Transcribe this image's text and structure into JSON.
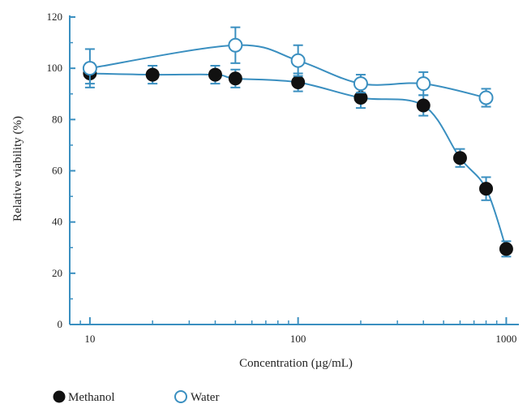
{
  "chart_data": {
    "type": "line",
    "title": "",
    "xlabel": "Concentration (µg/mL)",
    "ylabel": "Relative viability (%)",
    "xscale": "log",
    "xlim": [
      8,
      1150
    ],
    "ylim": [
      0,
      120
    ],
    "xticks": [
      10,
      100,
      1000
    ],
    "yticks": [
      0,
      20,
      40,
      60,
      80,
      100,
      120
    ],
    "grid": false,
    "legend_position": "bottom-left",
    "axis_color": "#3a8fc0",
    "series": [
      {
        "name": "Methanol",
        "marker": "filled-circle",
        "line_color": "#3a8fc0",
        "marker_color": "#111111",
        "points": [
          {
            "x": 10,
            "y": 98,
            "err": 4
          },
          {
            "x": 20,
            "y": 97.5,
            "err": 3.5
          },
          {
            "x": 40,
            "y": 97.5,
            "err": 3.5
          },
          {
            "x": 50,
            "y": 96,
            "err": 3.5
          },
          {
            "x": 100,
            "y": 94.5,
            "err": 3.5
          },
          {
            "x": 200,
            "y": 88.5,
            "err": 4
          },
          {
            "x": 400,
            "y": 85.5,
            "err": 4
          },
          {
            "x": 600,
            "y": 65,
            "err": 3.5
          },
          {
            "x": 800,
            "y": 53,
            "err": 4.5
          },
          {
            "x": 1000,
            "y": 29.5,
            "err": 3
          }
        ]
      },
      {
        "name": "Water",
        "marker": "open-circle",
        "line_color": "#3a8fc0",
        "marker_color": "#3a8fc0",
        "points": [
          {
            "x": 10,
            "y": 100,
            "err": 7.5
          },
          {
            "x": 50,
            "y": 109,
            "err": 7
          },
          {
            "x": 100,
            "y": 103,
            "err": 6
          },
          {
            "x": 200,
            "y": 94,
            "err": 3.5
          },
          {
            "x": 400,
            "y": 94,
            "err": 4.5
          },
          {
            "x": 800,
            "y": 88.5,
            "err": 3.5
          }
        ]
      }
    ]
  }
}
